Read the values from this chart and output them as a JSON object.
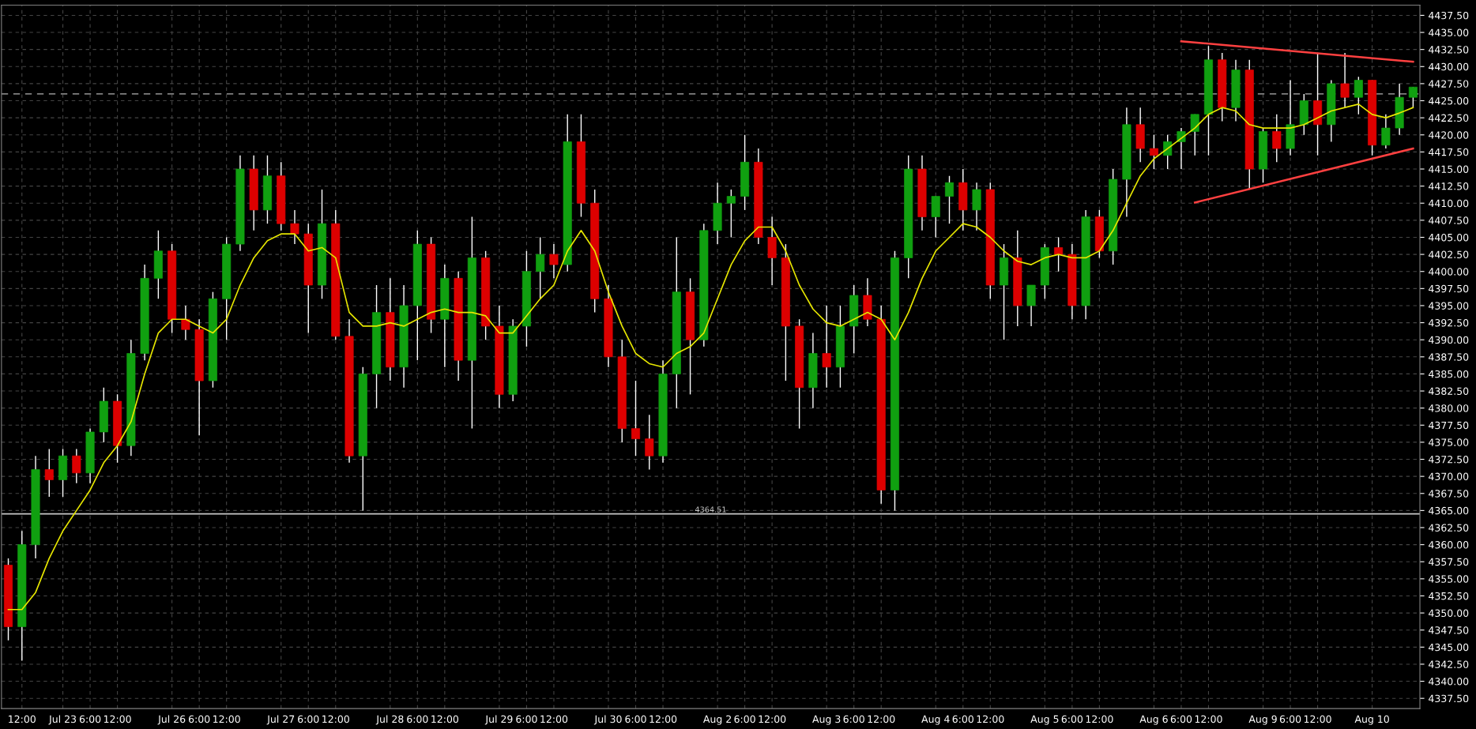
{
  "chart_data": {
    "type": "candlestick",
    "categories": [
      null,
      "12:00",
      null,
      null,
      "Jul 23",
      null,
      "6:00",
      null,
      "12:00",
      null,
      null,
      null,
      "Jul 26",
      null,
      "6:00",
      null,
      "12:00",
      null,
      null,
      null,
      "Jul 27",
      null,
      "6:00",
      null,
      "12:00",
      null,
      null,
      null,
      "Jul 28",
      null,
      "6:00",
      null,
      "12:00",
      null,
      null,
      null,
      "Jul 29",
      null,
      "6:00",
      null,
      "12:00",
      null,
      null,
      null,
      "Jul 30",
      null,
      "6:00",
      null,
      "12:00",
      null,
      null,
      null,
      "Aug 2",
      null,
      "6:00",
      null,
      "12:00",
      null,
      null,
      null,
      "Aug 3",
      null,
      "6:00",
      null,
      "12:00",
      null,
      null,
      null,
      "Aug 4",
      null,
      "6:00",
      null,
      "12:00",
      null,
      null,
      null,
      "Aug 5",
      null,
      "6:00",
      null,
      "12:00",
      null,
      null,
      null,
      "Aug 6",
      null,
      "6:00",
      null,
      "12:00",
      null,
      null,
      null,
      "Aug 9",
      null,
      "6:00",
      null,
      "12:00",
      null,
      null,
      null,
      "Aug 10",
      null,
      null,
      null
    ],
    "series": [
      {
        "colors": [
          "#dd0000",
          "#10a010",
          "#10a010",
          "#dd0000",
          "#10a010",
          "#dd0000",
          "#10a010",
          "#10a010",
          "#dd0000",
          "#10a010",
          "#10a010",
          "#10a010",
          "#dd0000",
          "#dd0000",
          "#dd0000",
          "#10a010",
          "#10a010",
          "#10a010",
          "#dd0000",
          "#10a010",
          "#dd0000",
          "#dd0000",
          "#dd0000",
          "#10a010",
          "#dd0000",
          "#dd0000",
          "#10a010",
          "#10a010",
          "#dd0000",
          "#10a010",
          "#10a010",
          "#dd0000",
          "#10a010",
          "#dd0000",
          "#10a010",
          "#dd0000",
          "#dd0000",
          "#10a010",
          "#10a010",
          "#10a010",
          "#dd0000",
          "#10a010",
          "#dd0000",
          "#dd0000",
          "#dd0000",
          "#dd0000",
          "#dd0000",
          "#dd0000",
          "#10a010",
          "#10a010",
          "#dd0000",
          "#10a010",
          "#10a010",
          "#10a010",
          "#10a010",
          "#dd0000",
          "#dd0000",
          "#dd0000",
          "#dd0000",
          "#10a010",
          "#dd0000",
          "#10a010",
          "#10a010",
          "#dd0000",
          "#dd0000",
          "#10a010",
          "#10a010",
          "#dd0000",
          "#10a010",
          "#10a010",
          "#dd0000",
          "#10a010",
          "#dd0000",
          "#10a010",
          "#dd0000",
          "#10a010",
          "#10a010",
          "#dd0000",
          "#dd0000",
          "#10a010",
          "#dd0000",
          "#10a010",
          "#10a010",
          "#dd0000",
          "#dd0000",
          "#10a010",
          "#10a010",
          "#10a010",
          "#10a010",
          "#dd0000",
          "#10a010",
          "#dd0000",
          "#10a010",
          "#dd0000",
          "#10a010",
          "#10a010",
          "#dd0000",
          "#10a010",
          "#dd0000",
          "#10a010",
          "#dd0000",
          "#10a010",
          "#10a010",
          "#10a010"
        ],
        "ohlc": [
          [
            4357,
            4358,
            4346,
            4348
          ],
          [
            4348,
            4362,
            4343,
            4360
          ],
          [
            4360,
            4373,
            4358,
            4371
          ],
          [
            4371,
            4374,
            4367,
            4369.5
          ],
          [
            4369.5,
            4374,
            4367,
            4373
          ],
          [
            4373,
            4374,
            4369,
            4370.5
          ],
          [
            4370.5,
            4377,
            4369,
            4376.5
          ],
          [
            4376.5,
            4383,
            4375,
            4381
          ],
          [
            4381,
            4382,
            4372,
            4374.5
          ],
          [
            4374.5,
            4390,
            4373,
            4388
          ],
          [
            4388,
            4401,
            4387,
            4399
          ],
          [
            4399,
            4406,
            4396,
            4403
          ],
          [
            4403,
            4404,
            4391,
            4393
          ],
          [
            4393,
            4395,
            4390,
            4391.5
          ],
          [
            4391.5,
            4393,
            4376,
            4384
          ],
          [
            4384,
            4397,
            4383,
            4396
          ],
          [
            4396,
            4405,
            4390,
            4404
          ],
          [
            4404,
            4417,
            4403,
            4415
          ],
          [
            4415,
            4417,
            4406,
            4409
          ],
          [
            4409,
            4417,
            4407,
            4414
          ],
          [
            4414,
            4416,
            4406,
            4407
          ],
          [
            4407,
            4409,
            4404,
            4405.5
          ],
          [
            4405.5,
            4407,
            4391,
            4398
          ],
          [
            4398,
            4412,
            4396,
            4407
          ],
          [
            4407,
            4409,
            4390,
            4390.5
          ],
          [
            4390.5,
            4393,
            4372,
            4373
          ],
          [
            4373,
            4386,
            4365,
            4385
          ],
          [
            4385,
            4398,
            4380,
            4394
          ],
          [
            4394,
            4399,
            4384,
            4386
          ],
          [
            4386,
            4398,
            4383,
            4395
          ],
          [
            4395,
            4406,
            4387,
            4404
          ],
          [
            4404,
            4405,
            4391,
            4393
          ],
          [
            4393,
            4401,
            4386,
            4399
          ],
          [
            4399,
            4400,
            4384,
            4387
          ],
          [
            4387,
            4408,
            4377,
            4402
          ],
          [
            4402,
            4403,
            4390,
            4392
          ],
          [
            4392,
            4395,
            4380,
            4382
          ],
          [
            4382,
            4393,
            4381,
            4392
          ],
          [
            4392,
            4403,
            4389,
            4400
          ],
          [
            4400,
            4405,
            4396,
            4402.5
          ],
          [
            4402.5,
            4404,
            4399,
            4401
          ],
          [
            4401,
            4423,
            4400,
            4419
          ],
          [
            4419,
            4423,
            4408,
            4410
          ],
          [
            4410,
            4412,
            4394,
            4396
          ],
          [
            4396,
            4398,
            4386,
            4387.5
          ],
          [
            4387.5,
            4390,
            4375,
            4377
          ],
          [
            4377,
            4384,
            4373,
            4375.5
          ],
          [
            4375.5,
            4379,
            4371,
            4373
          ],
          [
            4373,
            4387,
            4372,
            4385
          ],
          [
            4385,
            4405,
            4380,
            4397
          ],
          [
            4397,
            4399,
            4382,
            4390
          ],
          [
            4390,
            4407,
            4389,
            4406
          ],
          [
            4406,
            4413,
            4404,
            4410
          ],
          [
            4410,
            4412,
            4405,
            4411
          ],
          [
            4411,
            4420,
            4409,
            4416
          ],
          [
            4416,
            4418,
            4404,
            4405
          ],
          [
            4405,
            4408,
            4398,
            4402
          ],
          [
            4402,
            4404,
            4384,
            4392
          ],
          [
            4392,
            4393,
            4377,
            4383
          ],
          [
            4383,
            4391,
            4380,
            4388
          ],
          [
            4388,
            4395,
            4383,
            4386
          ],
          [
            4386,
            4395,
            4383,
            4392
          ],
          [
            4392,
            4398,
            4388,
            4396.5
          ],
          [
            4396.5,
            4399,
            4392,
            4393
          ],
          [
            4393,
            4395,
            4366,
            4368
          ],
          [
            4368,
            4403,
            4365,
            4402
          ],
          [
            4402,
            4417,
            4399,
            4415
          ],
          [
            4415,
            4417,
            4406,
            4408
          ],
          [
            4408,
            4411,
            4405,
            4411
          ],
          [
            4411,
            4414,
            4407,
            4413
          ],
          [
            4413,
            4415,
            4406,
            4409
          ],
          [
            4409,
            4413,
            4406,
            4412
          ],
          [
            4412,
            4413,
            4396,
            4398
          ],
          [
            4398,
            4404,
            4390,
            4402
          ],
          [
            4402,
            4406,
            4392,
            4395
          ],
          [
            4395,
            4398,
            4392,
            4398
          ],
          [
            4398,
            4404,
            4396,
            4403.5
          ],
          [
            4403.5,
            4405,
            4400,
            4402.5
          ],
          [
            4402.5,
            4404,
            4393,
            4395
          ],
          [
            4395,
            4409,
            4393,
            4408
          ],
          [
            4408,
            4409,
            4402,
            4403
          ],
          [
            4403,
            4415,
            4401,
            4413.5
          ],
          [
            4413.5,
            4424,
            4408,
            4421.5
          ],
          [
            4421.5,
            4424,
            4416,
            4418
          ],
          [
            4418,
            4420,
            4415,
            4417
          ],
          [
            4417,
            4420,
            4415,
            4419
          ],
          [
            4419,
            4421,
            4415,
            4420.5
          ],
          [
            4420.5,
            4423,
            4417,
            4423
          ],
          [
            4423,
            4433,
            4417,
            4431
          ],
          [
            4431,
            4432,
            4422,
            4424
          ],
          [
            4424,
            4431,
            4422,
            4429.5
          ],
          [
            4429.5,
            4431,
            4412,
            4415
          ],
          [
            4415,
            4421,
            4413,
            4420.5
          ],
          [
            4420.5,
            4423,
            4416,
            4418
          ],
          [
            4418,
            4428,
            4417,
            4421.5
          ],
          [
            4421.5,
            4426,
            4420,
            4425
          ],
          [
            4425,
            4432,
            4417,
            4421.5
          ],
          [
            4421.5,
            4428,
            4419,
            4427.5
          ],
          [
            4427.5,
            4432,
            4424,
            4425.5
          ],
          [
            4425.5,
            4428.5,
            4423,
            4428
          ],
          [
            4428,
            4428,
            4417,
            4418.5
          ],
          [
            4418.5,
            4423,
            4418,
            4421
          ],
          [
            4421,
            4427.5,
            4420,
            4425.5
          ],
          [
            4425.5,
            4427,
            4424,
            4427
          ]
        ]
      },
      {
        "type": "line",
        "color": "#e6e600",
        "values": [
          4350.5,
          4350.5,
          4353,
          4358,
          4362,
          4365,
          4368,
          4372,
          4374.5,
          4378,
          4385,
          4391,
          4393,
          4393,
          4392,
          4391,
          4393,
          4398,
          4402,
          4404.5,
          4405.5,
          4405.5,
          4403,
          4403.5,
          4402,
          4394,
          4392,
          4392,
          4392.5,
          4392,
          4393,
          4394,
          4394.5,
          4394,
          4394,
          4393.5,
          4391,
          4391,
          4393.5,
          4396,
          4398,
          4403,
          4406,
          4403,
          4397,
          4392,
          4388,
          4386.5,
          4386,
          4388,
          4389,
          4391,
          4396,
          4401,
          4404.5,
          4406.5,
          4406.5,
          4403,
          4398,
          4394.5,
          4392.5,
          4392,
          4393,
          4394,
          4393,
          4390,
          4394,
          4399,
          4403,
          4405,
          4407,
          4406.5,
          4405,
          4403,
          4401.5,
          4401,
          4402,
          4402.5,
          4402,
          4402,
          4403,
          4406,
          4410,
          4414,
          4416.5,
          4418,
          4419.5,
          4421,
          4423,
          4424,
          4423.5,
          4421.5,
          4421,
          4421,
          4421,
          4421.5,
          4422.5,
          4423.5,
          4424,
          4424.5,
          4423,
          4422.5,
          4423.2,
          4424
        ]
      },
      {
        "type": "line",
        "color": "#ff4040",
        "values": [
          null,
          null,
          null,
          null,
          null,
          null,
          null,
          null,
          null,
          null,
          null,
          null,
          null,
          null,
          null,
          null,
          null,
          null,
          null,
          null,
          null,
          null,
          null,
          null,
          null,
          null,
          null,
          null,
          null,
          null,
          null,
          null,
          null,
          null,
          null,
          null,
          null,
          null,
          null,
          null,
          null,
          null,
          null,
          null,
          null,
          null,
          null,
          null,
          null,
          null,
          null,
          null,
          null,
          null,
          null,
          null,
          null,
          null,
          null,
          null,
          null,
          null,
          null,
          null,
          null,
          null,
          null,
          null,
          null,
          null,
          null,
          null,
          null,
          null,
          null,
          null,
          null,
          null,
          null,
          null,
          null,
          null,
          null,
          null,
          null,
          null,
          4433.7,
          null,
          null,
          null,
          null,
          null,
          null,
          null,
          null,
          null,
          null,
          null,
          null,
          null,
          null,
          null,
          null,
          4430.7
        ]
      },
      {
        "type": "line",
        "color": "#ff4040",
        "values": [
          null,
          null,
          null,
          null,
          null,
          null,
          null,
          null,
          null,
          null,
          null,
          null,
          null,
          null,
          null,
          null,
          null,
          null,
          null,
          null,
          null,
          null,
          null,
          null,
          null,
          null,
          null,
          null,
          null,
          null,
          null,
          null,
          null,
          null,
          null,
          null,
          null,
          null,
          null,
          null,
          null,
          null,
          null,
          null,
          null,
          null,
          null,
          null,
          null,
          null,
          null,
          null,
          null,
          null,
          null,
          null,
          null,
          null,
          null,
          null,
          null,
          null,
          null,
          null,
          null,
          null,
          null,
          null,
          null,
          null,
          null,
          null,
          null,
          null,
          null,
          null,
          null,
          null,
          null,
          null,
          null,
          null,
          null,
          null,
          null,
          null,
          null,
          4410.1,
          null,
          null,
          null,
          null,
          null,
          null,
          null,
          null,
          null,
          null,
          null,
          null,
          null,
          null,
          null,
          4418
        ]
      }
    ],
    "ylim": [
      4336,
      4439
    ],
    "yticks": [
      {
        "value": 4337.5,
        "label": "4337.50"
      },
      {
        "value": 4340,
        "label": "4340.00"
      },
      {
        "value": 4342.5,
        "label": "4342.50"
      },
      {
        "value": 4345,
        "label": "4345.00"
      },
      {
        "value": 4347.5,
        "label": "4347.50"
      },
      {
        "value": 4350,
        "label": "4350.00"
      },
      {
        "value": 4352.5,
        "label": "4352.50"
      },
      {
        "value": 4355,
        "label": "4355.00"
      },
      {
        "value": 4357.5,
        "label": "4357.50"
      },
      {
        "value": 4360,
        "label": "4360.00"
      },
      {
        "value": 4362.5,
        "label": "4362.50"
      },
      {
        "value": 4365,
        "label": "4365.00"
      },
      {
        "value": 4367.5,
        "label": "4367.50"
      },
      {
        "value": 4370,
        "label": "4370.00"
      },
      {
        "value": 4372.5,
        "label": "4372.50"
      },
      {
        "value": 4375,
        "label": "4375.00"
      },
      {
        "value": 4377.5,
        "label": "4377.50"
      },
      {
        "value": 4380,
        "label": "4380.00"
      },
      {
        "value": 4382.5,
        "label": "4382.50"
      },
      {
        "value": 4385,
        "label": "4385.00"
      },
      {
        "value": 4387.5,
        "label": "4387.50"
      },
      {
        "value": 4390,
        "label": "4390.00"
      },
      {
        "value": 4392.5,
        "label": "4392.50"
      },
      {
        "value": 4395,
        "label": "4395.00"
      },
      {
        "value": 4397.5,
        "label": "4397.50"
      },
      {
        "value": 4400,
        "label": "4400.00"
      },
      {
        "value": 4402.5,
        "label": "4402.50"
      },
      {
        "value": 4405,
        "label": "4405.00"
      },
      {
        "value": 4407.5,
        "label": "4407.50"
      },
      {
        "value": 4410,
        "label": "4410.00"
      },
      {
        "value": 4412.5,
        "label": "4412.50"
      },
      {
        "value": 4415,
        "label": "4415.00"
      },
      {
        "value": 4417.5,
        "label": "4417.50"
      },
      {
        "value": 4420,
        "label": "4420.00"
      },
      {
        "value": 4422.5,
        "label": "4422.50"
      },
      {
        "value": 4425,
        "label": "4425.00"
      },
      {
        "value": 4427.5,
        "label": "4427.50"
      },
      {
        "value": 4430,
        "label": "4430.00"
      },
      {
        "value": 4432.5,
        "label": "4432.50"
      },
      {
        "value": 4435,
        "label": "4435.00"
      },
      {
        "value": 4437.5,
        "label": "4437.50"
      }
    ],
    "grid": true,
    "ref_lines": [
      {
        "axis": "y",
        "value": 4364.51,
        "label": "4364.51",
        "color": "#c8c8c8",
        "line_style": "solid"
      },
      {
        "axis": "y",
        "value": 4426,
        "color": "#808080",
        "line_style": "dashed"
      }
    ]
  }
}
